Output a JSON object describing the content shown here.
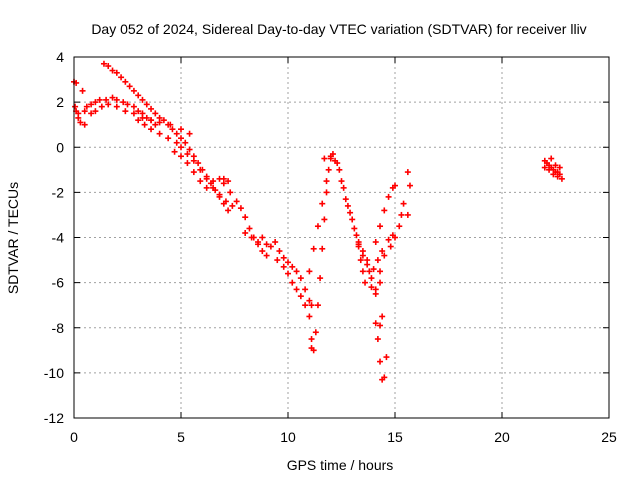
{
  "chart_data": {
    "type": "scatter",
    "title": "Day 052 of 2024, Sidereal Day-to-day VTEC variation (SDTVAR) for receiver lliv",
    "xlabel": "GPS time / hours",
    "ylabel": "SDTVAR / TECUs",
    "xlim": [
      0,
      25
    ],
    "ylim": [
      -12,
      4
    ],
    "xticks": [
      "0",
      "5",
      "10",
      "15",
      "20",
      "25"
    ],
    "yticks": [
      "-12",
      "-10",
      "-8",
      "-6",
      "-4",
      "-2",
      "0",
      "2",
      "4"
    ],
    "grid": true,
    "legend": "none",
    "marker": "+",
    "color": "#ff0000",
    "series": [
      {
        "points": [
          [
            0.0,
            2.9
          ],
          [
            0.1,
            2.85
          ],
          [
            0.05,
            1.8
          ],
          [
            0.1,
            1.6
          ],
          [
            0.2,
            1.3
          ],
          [
            0.3,
            1.1
          ],
          [
            0.4,
            2.5
          ],
          [
            0.5,
            1.0
          ],
          [
            0.6,
            1.8
          ],
          [
            0.8,
            1.9
          ],
          [
            1.0,
            2.0
          ],
          [
            1.2,
            2.1
          ],
          [
            1.5,
            2.1
          ],
          [
            1.8,
            2.2
          ],
          [
            2.0,
            2.1
          ],
          [
            2.3,
            2.0
          ],
          [
            2.5,
            1.9
          ],
          [
            2.8,
            1.8
          ],
          [
            3.0,
            1.6
          ],
          [
            3.2,
            1.5
          ],
          [
            3.4,
            1.3
          ],
          [
            3.6,
            1.2
          ],
          [
            3.8,
            1.0
          ],
          [
            0.2,
            1.5
          ],
          [
            0.5,
            1.6
          ],
          [
            0.8,
            1.5
          ],
          [
            1.0,
            1.6
          ],
          [
            1.3,
            1.8
          ],
          [
            1.6,
            1.9
          ],
          [
            2.0,
            1.8
          ],
          [
            2.4,
            1.6
          ],
          [
            2.8,
            1.5
          ],
          [
            3.2,
            1.3
          ],
          [
            3.6,
            1.2
          ],
          [
            4.0,
            1.1
          ],
          [
            4.5,
            1.0
          ],
          [
            5.0,
            0.8
          ],
          [
            5.4,
            0.6
          ],
          [
            1.4,
            3.7
          ],
          [
            1.6,
            3.6
          ],
          [
            1.8,
            3.4
          ],
          [
            2.0,
            3.3
          ],
          [
            2.2,
            3.1
          ],
          [
            2.4,
            2.9
          ],
          [
            2.6,
            2.7
          ],
          [
            2.8,
            2.5
          ],
          [
            3.0,
            2.3
          ],
          [
            3.2,
            2.1
          ],
          [
            3.4,
            1.9
          ],
          [
            3.6,
            1.7
          ],
          [
            3.8,
            1.5
          ],
          [
            4.0,
            1.3
          ],
          [
            4.2,
            1.2
          ],
          [
            4.4,
            1.0
          ],
          [
            4.6,
            0.8
          ],
          [
            4.8,
            0.6
          ],
          [
            5.0,
            0.4
          ],
          [
            5.2,
            0.2
          ],
          [
            5.4,
            -0.1
          ],
          [
            5.6,
            -0.4
          ],
          [
            5.8,
            -0.7
          ],
          [
            6.0,
            -1.0
          ],
          [
            6.2,
            -1.3
          ],
          [
            6.4,
            -1.6
          ],
          [
            6.6,
            -1.9
          ],
          [
            6.8,
            -2.2
          ],
          [
            7.0,
            -2.5
          ],
          [
            7.2,
            -2.8
          ],
          [
            3.0,
            1.2
          ],
          [
            3.3,
            1.0
          ],
          [
            3.6,
            0.8
          ],
          [
            4.0,
            0.6
          ],
          [
            4.4,
            0.4
          ],
          [
            4.8,
            0.2
          ],
          [
            5.0,
            0.0
          ],
          [
            5.3,
            -0.3
          ],
          [
            5.6,
            -0.6
          ],
          [
            5.9,
            -1.0
          ],
          [
            6.2,
            -1.4
          ],
          [
            6.5,
            -1.8
          ],
          [
            6.8,
            -2.1
          ],
          [
            7.1,
            -2.4
          ],
          [
            7.4,
            -2.6
          ],
          [
            4.7,
            -0.2
          ],
          [
            5.0,
            -0.4
          ],
          [
            5.3,
            -0.7
          ],
          [
            5.6,
            -1.1
          ],
          [
            5.9,
            -1.5
          ],
          [
            6.2,
            -1.8
          ],
          [
            6.5,
            -1.5
          ],
          [
            6.8,
            -1.4
          ],
          [
            7.0,
            -1.6
          ],
          [
            7.2,
            -1.5
          ],
          [
            7.0,
            -1.4
          ],
          [
            7.3,
            -2.0
          ],
          [
            7.6,
            -2.4
          ],
          [
            7.8,
            -2.7
          ],
          [
            8.0,
            -3.1
          ],
          [
            8.2,
            -3.6
          ],
          [
            8.4,
            -4.0
          ],
          [
            8.6,
            -4.3
          ],
          [
            8.8,
            -4.6
          ],
          [
            9.0,
            -4.8
          ],
          [
            8.0,
            -3.8
          ],
          [
            8.3,
            -4.0
          ],
          [
            8.6,
            -4.2
          ],
          [
            8.8,
            -4.0
          ],
          [
            9.0,
            -4.3
          ],
          [
            9.2,
            -4.4
          ],
          [
            9.4,
            -4.2
          ],
          [
            9.6,
            -4.6
          ],
          [
            9.8,
            -4.9
          ],
          [
            10.0,
            -5.1
          ],
          [
            10.2,
            -5.3
          ],
          [
            10.4,
            -5.5
          ],
          [
            10.6,
            -5.8
          ],
          [
            10.8,
            -6.3
          ],
          [
            11.0,
            -6.8
          ],
          [
            11.1,
            -7.0
          ],
          [
            9.5,
            -5.0
          ],
          [
            9.8,
            -5.3
          ],
          [
            10.0,
            -5.6
          ],
          [
            10.2,
            -6.0
          ],
          [
            10.4,
            -6.3
          ],
          [
            10.6,
            -6.6
          ],
          [
            10.8,
            -7.0
          ],
          [
            11.0,
            -7.5
          ],
          [
            11.1,
            -8.5
          ],
          [
            11.1,
            -8.9
          ],
          [
            11.2,
            -9.0
          ],
          [
            11.3,
            -8.2
          ],
          [
            11.4,
            -7.0
          ],
          [
            11.5,
            -5.8
          ],
          [
            11.6,
            -4.5
          ],
          [
            11.7,
            -3.2
          ],
          [
            11.8,
            -2.0
          ],
          [
            11.9,
            -1.0
          ],
          [
            12.0,
            -0.5
          ],
          [
            11.0,
            -5.5
          ],
          [
            11.2,
            -4.5
          ],
          [
            11.4,
            -3.5
          ],
          [
            11.6,
            -2.5
          ],
          [
            11.8,
            -1.5
          ],
          [
            11.7,
            -0.5
          ],
          [
            12.0,
            -0.4
          ],
          [
            12.1,
            -0.3
          ],
          [
            12.2,
            -0.6
          ],
          [
            12.4,
            -1.0
          ],
          [
            12.6,
            -1.8
          ],
          [
            12.8,
            -2.6
          ],
          [
            13.0,
            -3.2
          ],
          [
            13.2,
            -3.9
          ],
          [
            13.3,
            -4.4
          ],
          [
            13.4,
            -5.0
          ],
          [
            13.5,
            -5.5
          ],
          [
            13.6,
            -6.0
          ],
          [
            12.3,
            -0.7
          ],
          [
            12.5,
            -1.5
          ],
          [
            12.7,
            -2.3
          ],
          [
            12.9,
            -2.9
          ],
          [
            13.1,
            -3.6
          ],
          [
            13.3,
            -4.2
          ],
          [
            13.5,
            -4.8
          ],
          [
            13.7,
            -5.2
          ],
          [
            13.8,
            -5.5
          ],
          [
            14.0,
            -5.4
          ],
          [
            14.2,
            -5.0
          ],
          [
            14.4,
            -4.6
          ],
          [
            13.3,
            -4.3
          ],
          [
            13.5,
            -4.6
          ],
          [
            13.7,
            -5.0
          ],
          [
            13.9,
            -5.8
          ],
          [
            14.1,
            -6.3
          ],
          [
            14.3,
            -6.0
          ],
          [
            13.9,
            -6.2
          ],
          [
            14.1,
            -6.5
          ],
          [
            14.3,
            -5.5
          ],
          [
            14.5,
            -4.8
          ],
          [
            14.7,
            -4.1
          ],
          [
            14.9,
            -3.9
          ],
          [
            14.1,
            -7.8
          ],
          [
            14.2,
            -8.5
          ],
          [
            14.3,
            -9.5
          ],
          [
            14.4,
            -10.3
          ],
          [
            14.5,
            -10.2
          ],
          [
            14.6,
            -9.3
          ],
          [
            14.4,
            -7.5
          ],
          [
            14.3,
            -7.9
          ],
          [
            14.1,
            -4.2
          ],
          [
            14.3,
            -3.5
          ],
          [
            14.5,
            -2.8
          ],
          [
            14.7,
            -2.2
          ],
          [
            14.9,
            -1.8
          ],
          [
            15.0,
            -1.7
          ],
          [
            14.8,
            -4.4
          ],
          [
            15.0,
            -4.0
          ],
          [
            15.2,
            -3.5
          ],
          [
            15.3,
            -3.0
          ],
          [
            15.4,
            -2.5
          ],
          [
            15.6,
            -1.1
          ],
          [
            15.7,
            -1.7
          ],
          [
            15.6,
            -3.0
          ],
          [
            22.0,
            -0.6
          ],
          [
            22.1,
            -0.7
          ],
          [
            22.2,
            -0.8
          ],
          [
            22.3,
            -0.9
          ],
          [
            22.4,
            -1.0
          ],
          [
            22.5,
            -1.1
          ],
          [
            22.6,
            -1.1
          ],
          [
            22.7,
            -1.2
          ],
          [
            22.8,
            -1.4
          ],
          [
            22.0,
            -0.9
          ],
          [
            22.2,
            -1.0
          ],
          [
            22.4,
            -1.2
          ],
          [
            22.6,
            -1.3
          ],
          [
            22.3,
            -0.5
          ],
          [
            22.5,
            -0.8
          ],
          [
            22.7,
            -0.9
          ]
        ]
      }
    ]
  }
}
